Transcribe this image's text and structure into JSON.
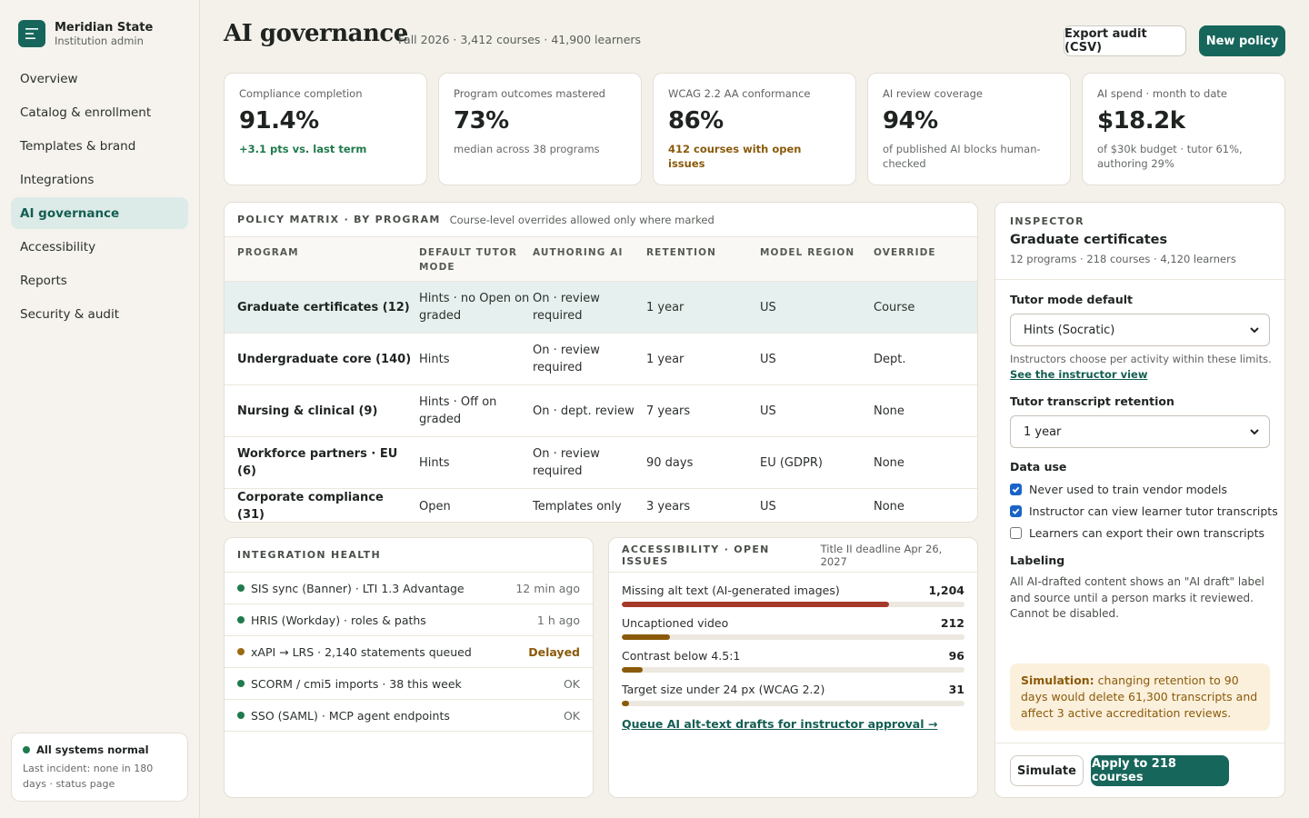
{
  "brand": {
    "name": "Meridian State",
    "role": "Institution admin"
  },
  "nav": [
    {
      "label": "Overview",
      "active": false
    },
    {
      "label": "Catalog & enrollment",
      "active": false
    },
    {
      "label": "Templates & brand",
      "active": false
    },
    {
      "label": "Integrations",
      "active": false
    },
    {
      "label": "AI governance",
      "active": true
    },
    {
      "label": "Accessibility",
      "active": false
    },
    {
      "label": "Reports",
      "active": false
    },
    {
      "label": "Security & audit",
      "active": false
    }
  ],
  "system_status": {
    "title": "All systems normal",
    "detail": "Last incident: none in 180 days · status page"
  },
  "header": {
    "title": "AI governance",
    "subtitle": "Fall 2026 · 3,412 courses · 41,900 learners",
    "export_label": "Export audit (CSV)",
    "new_policy_label": "New policy"
  },
  "kpis": [
    {
      "label": "Compliance completion",
      "value": "91.4%",
      "note": "+3.1 pts vs. last term",
      "tone": "good"
    },
    {
      "label": "Program outcomes mastered",
      "value": "73%",
      "note": "median across 38 programs",
      "tone": "neutral"
    },
    {
      "label": "WCAG 2.2 AA conformance",
      "value": "86%",
      "note": "412 courses with open issues",
      "tone": "warn"
    },
    {
      "label": "AI review coverage",
      "value": "94%",
      "note": "of published AI blocks human-checked",
      "tone": "neutral"
    },
    {
      "label": "AI spend · month to date",
      "value": "$18.2k",
      "note": "of $30k budget · tutor 61%, authoring 29%",
      "tone": "neutral"
    }
  ],
  "policy_matrix": {
    "title": "Policy matrix · by program",
    "note": "Course-level overrides allowed only where marked",
    "columns": [
      "Program",
      "Default tutor mode",
      "Authoring AI",
      "Retention",
      "Model region",
      "Override"
    ],
    "rows": [
      {
        "program": "Graduate certificates (12)",
        "tutor": "Hints · no Open on graded",
        "authoring": "On · review required",
        "retention": "1 year",
        "region": "US",
        "override": "Course",
        "selected": true
      },
      {
        "program": "Undergraduate core (140)",
        "tutor": "Hints",
        "authoring": "On · review required",
        "retention": "1 year",
        "region": "US",
        "override": "Dept.",
        "selected": false
      },
      {
        "program": "Nursing & clinical (9)",
        "tutor": "Hints · Off on graded",
        "authoring": "On · dept. review",
        "retention": "7 years",
        "region": "US",
        "override": "None",
        "selected": false
      },
      {
        "program": "Workforce partners · EU (6)",
        "tutor": "Hints",
        "authoring": "On · review required",
        "retention": "90 days",
        "region": "EU (GDPR)",
        "override": "None",
        "selected": false
      },
      {
        "program": "Corporate compliance (31)",
        "tutor": "Open",
        "authoring": "Templates only",
        "retention": "3 years",
        "region": "US",
        "override": "None",
        "selected": false
      }
    ]
  },
  "integration_health": {
    "title": "Integration health",
    "items": [
      {
        "name": "SIS sync (Banner) · LTI 1.3 Advantage",
        "status": "12 min ago",
        "tone": "ok"
      },
      {
        "name": "HRIS (Workday) · roles & paths",
        "status": "1 h ago",
        "tone": "ok"
      },
      {
        "name": "xAPI → LRS · 2,140 statements queued",
        "status": "Delayed",
        "tone": "warn"
      },
      {
        "name": "SCORM / cmi5 imports · 38 this week",
        "status": "OK",
        "tone": "ok"
      },
      {
        "name": "SSO (SAML) · MCP agent endpoints",
        "status": "OK",
        "tone": "ok"
      }
    ]
  },
  "accessibility": {
    "title": "Accessibility · open issues",
    "deadline": "Title II deadline Apr 26, 2027",
    "items": [
      {
        "label": "Missing alt text (AI-generated images)",
        "count": "1,204",
        "fraction": 0.78,
        "color": "#a53a2a"
      },
      {
        "label": "Uncaptioned video",
        "count": "212",
        "fraction": 0.14,
        "color": "#8a5a0a"
      },
      {
        "label": "Contrast below 4.5:1",
        "count": "96",
        "fraction": 0.06,
        "color": "#8a5a0a"
      },
      {
        "label": "Target size under 24 px (WCAG 2.2)",
        "count": "31",
        "fraction": 0.02,
        "color": "#8a5a0a"
      }
    ],
    "action_link": "Queue AI alt-text drafts for instructor approval →"
  },
  "inspector": {
    "eyebrow": "Inspector",
    "title": "Graduate certificates",
    "meta": "12 programs · 218 courses · 4,120 learners",
    "tutor_mode_label": "Tutor mode default",
    "tutor_mode_value": "Hints (Socratic)",
    "tutor_mode_help": "Instructors choose per activity within these limits.",
    "instructor_view_link": "See the instructor view",
    "retention_label": "Tutor transcript retention",
    "retention_value": "1 year",
    "data_use_label": "Data use",
    "data_use": [
      {
        "label": "Never used to train vendor models",
        "checked": true
      },
      {
        "label": "Instructor can view learner tutor transcripts",
        "checked": true
      },
      {
        "label": "Learners can export their own transcripts",
        "checked": false
      }
    ],
    "labeling_label": "Labeling",
    "labeling_text": "All AI-drafted content shows an \"AI draft\" label and source until a person marks it reviewed. Cannot be disabled.",
    "simulation_lead": "Simulation:",
    "simulation_text": "changing retention to 90 days would delete 61,300 transcripts and affect 3 active accreditation reviews.",
    "simulate_label": "Simulate",
    "apply_label": "Apply to 218 courses"
  },
  "colors": {
    "accent": "#17665b",
    "good": "#1f7a4c",
    "warn": "#8a5a0a",
    "danger": "#a53a2a",
    "background": "#f4f1eb"
  }
}
